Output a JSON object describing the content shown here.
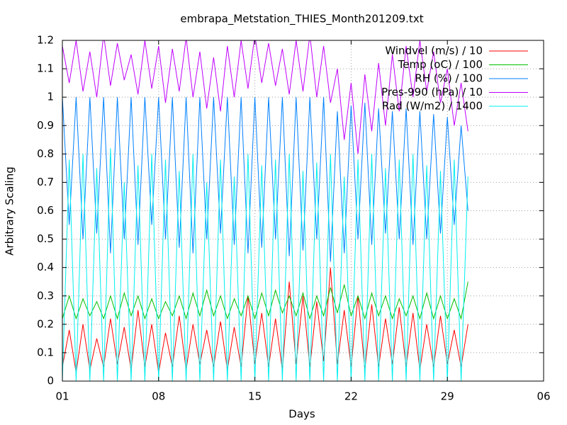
{
  "chart_data": {
    "type": "line",
    "title": "embrapa_Metstation_THIES_Month201209.txt",
    "x_label": "Days",
    "y_label": "Arbitrary Scaling",
    "xlim": [
      1,
      36
    ],
    "xticks": [
      {
        "value": 1,
        "label": "01"
      },
      {
        "value": 8,
        "label": "08"
      },
      15,
      22,
      29,
      {
        "value": 36,
        "label": "06"
      }
    ],
    "ylim": [
      0,
      1.2
    ],
    "yticks": [
      0,
      0.1,
      0.2,
      0.3,
      0.4,
      0.5,
      0.6,
      0.7,
      0.8,
      0.9,
      1,
      1.1,
      1.2
    ],
    "grid": true,
    "legend": "top-right",
    "x": [
      1,
      1.5,
      2,
      2.5,
      3,
      3.5,
      4,
      4.5,
      5,
      5.5,
      6,
      6.5,
      7,
      7.5,
      8,
      8.5,
      9,
      9.5,
      10,
      10.5,
      11,
      11.5,
      12,
      12.5,
      13,
      13.5,
      14,
      14.5,
      15,
      15.5,
      16,
      16.5,
      17,
      17.5,
      18,
      18.5,
      19,
      19.5,
      20,
      20.5,
      21,
      21.5,
      22,
      22.5,
      23,
      23.5,
      24,
      24.5,
      25,
      25.5,
      26,
      26.5,
      27,
      27.5,
      28,
      28.5,
      29,
      29.5,
      30,
      30.5
    ],
    "series": [
      {
        "name": "Windvel (m/s) / 10",
        "color": "#ff0000",
        "values": [
          0.05,
          0.18,
          0.03,
          0.2,
          0.04,
          0.15,
          0.05,
          0.22,
          0.06,
          0.19,
          0.04,
          0.25,
          0.05,
          0.2,
          0.03,
          0.17,
          0.05,
          0.23,
          0.04,
          0.2,
          0.06,
          0.18,
          0.05,
          0.21,
          0.04,
          0.19,
          0.05,
          0.3,
          0.06,
          0.24,
          0.05,
          0.22,
          0.04,
          0.35,
          0.06,
          0.3,
          0.05,
          0.28,
          0.07,
          0.4,
          0.06,
          0.25,
          0.05,
          0.3,
          0.04,
          0.27,
          0.05,
          0.22,
          0.06,
          0.26,
          0.05,
          0.24,
          0.04,
          0.2,
          0.05,
          0.23,
          0.06,
          0.18,
          0.05,
          0.2
        ]
      },
      {
        "name": "Temp (oC) / 100",
        "color": "#00c000",
        "values": [
          0.22,
          0.3,
          0.22,
          0.29,
          0.23,
          0.28,
          0.22,
          0.3,
          0.22,
          0.31,
          0.23,
          0.3,
          0.22,
          0.29,
          0.22,
          0.28,
          0.23,
          0.3,
          0.22,
          0.31,
          0.23,
          0.32,
          0.23,
          0.3,
          0.22,
          0.29,
          0.23,
          0.3,
          0.22,
          0.31,
          0.23,
          0.32,
          0.24,
          0.3,
          0.23,
          0.31,
          0.22,
          0.3,
          0.23,
          0.33,
          0.24,
          0.34,
          0.23,
          0.3,
          0.22,
          0.31,
          0.23,
          0.3,
          0.22,
          0.29,
          0.23,
          0.3,
          0.22,
          0.31,
          0.22,
          0.3,
          0.22,
          0.29,
          0.22,
          0.35
        ]
      },
      {
        "name": "RH (%) / 100",
        "color": "#0080ff",
        "values": [
          1,
          0.55,
          1,
          0.5,
          1,
          0.52,
          1,
          0.45,
          1,
          0.5,
          1,
          0.48,
          1,
          0.55,
          1,
          0.5,
          1,
          0.47,
          1,
          0.45,
          1,
          0.5,
          1,
          0.52,
          1,
          0.48,
          1,
          0.45,
          1,
          0.47,
          1,
          0.5,
          1,
          0.44,
          1,
          0.46,
          1,
          0.5,
          1,
          0.42,
          0.95,
          0.45,
          0.97,
          0.5,
          0.98,
          0.48,
          0.96,
          0.52,
          0.95,
          0.5,
          0.96,
          0.48,
          0.95,
          0.5,
          0.94,
          0.52,
          0.93,
          0.55,
          0.9,
          0.6
        ]
      },
      {
        "name": "Pres-990 (hPa) / 10",
        "color": "#c000ff",
        "values": [
          1.18,
          1.05,
          1.2,
          1.02,
          1.16,
          1.0,
          1.22,
          1.04,
          1.19,
          1.06,
          1.15,
          1.01,
          1.2,
          1.03,
          1.18,
          0.98,
          1.17,
          1.02,
          1.21,
          1.0,
          1.16,
          0.96,
          1.14,
          0.95,
          1.18,
          1.0,
          1.2,
          1.03,
          1.22,
          1.05,
          1.19,
          1.04,
          1.17,
          1.01,
          1.2,
          1.02,
          1.22,
          1.0,
          1.18,
          0.98,
          1.1,
          0.85,
          1.05,
          0.8,
          1.08,
          0.88,
          1.12,
          0.9,
          1.15,
          0.95,
          1.18,
          1.0,
          1.2,
          1.02,
          1.16,
          0.98,
          1.1,
          0.9,
          1.05,
          0.88
        ]
      },
      {
        "name": "Rad (W/m2) / 1400",
        "color": "#00eeee",
        "values": [
          0,
          0.78,
          0,
          0.8,
          0,
          0.75,
          0,
          0.82,
          0,
          0.7,
          0,
          0.76,
          0,
          0.8,
          0,
          0.78,
          0,
          0.74,
          0,
          0.8,
          0,
          0.7,
          0,
          0.78,
          0,
          0.72,
          0,
          0.8,
          0,
          0.76,
          0,
          0.78,
          0,
          0.8,
          0,
          0.74,
          0,
          0.77,
          0,
          0.8,
          0,
          0.72,
          0,
          0.78,
          0,
          0.8,
          0,
          0.75,
          0,
          0.78,
          0,
          0.8,
          0,
          0.76,
          0,
          0.74,
          0,
          0.78,
          0,
          0.72
        ]
      }
    ]
  }
}
